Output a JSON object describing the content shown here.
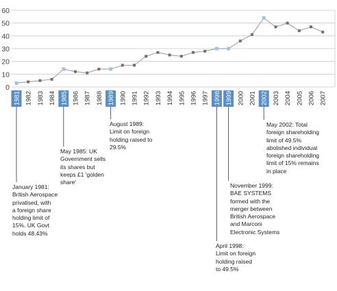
{
  "chart_data": {
    "type": "line",
    "title": "",
    "xlabel": "",
    "ylabel": "",
    "ylim": [
      0,
      60
    ],
    "yticks": [
      "0",
      "10",
      "20",
      "30",
      "40",
      "50",
      "60"
    ],
    "grid": true,
    "categories": [
      "1981",
      "1982",
      "1983",
      "1984",
      "1985",
      "1986",
      "1987",
      "1988",
      "1989",
      "1990",
      "1991",
      "1992",
      "1993",
      "1994",
      "1995",
      "1996",
      "1997",
      "1998",
      "1999",
      "2000",
      "2001",
      "2002",
      "2003",
      "2004",
      "2005",
      "2006",
      "2007"
    ],
    "series": [
      {
        "values": [
          3,
          4,
          5,
          6,
          14,
          12,
          11,
          14,
          14,
          17,
          17,
          24,
          27,
          25,
          24,
          27,
          28,
          30,
          30,
          36,
          41,
          54,
          47,
          50,
          44,
          47,
          43
        ]
      }
    ],
    "highlighted_years": [
      "1981",
      "1985",
      "1989",
      "1998",
      "1999",
      "2002"
    ],
    "colors": {
      "line": "#a8a8a8",
      "marker": "#707070",
      "highlight_marker": "#9dc3e6",
      "highlight_box": "#5b8ec4",
      "grid": "#c8c8c8",
      "leader": "#5a5a5a"
    }
  },
  "annotations": [
    {
      "year": "1981",
      "lines": [
        "January 1981:",
        "British Aerospace",
        "privatised, with",
        "a foreign share",
        "holding limit of",
        "15%. UK Govt",
        "holds 48.43%"
      ]
    },
    {
      "year": "1985",
      "lines": [
        "May 1985: UK",
        "Government sells",
        "its shares but",
        "keeps £1 'golden",
        "share'"
      ]
    },
    {
      "year": "1989",
      "lines": [
        "August 1989:",
        "Limit on foreign",
        "holding raised to",
        "29.5%"
      ]
    },
    {
      "year": "1998",
      "lines": [
        "April 1998:",
        "Limit on foreign",
        "holding raised",
        "to 49.5%"
      ]
    },
    {
      "year": "1999",
      "lines": [
        "November 1999:",
        "BAE SYSTEMS",
        "formed with the",
        "merger between",
        "British Aerospace",
        "and Marconi",
        "Electronic Systems"
      ]
    },
    {
      "year": "2002",
      "lines": [
        "May 2002: Total",
        "foreign shareholding",
        "limit of 49.5%",
        "abolished individual",
        "foreign shareholding",
        "limit of 15% remains",
        "in place"
      ]
    }
  ]
}
